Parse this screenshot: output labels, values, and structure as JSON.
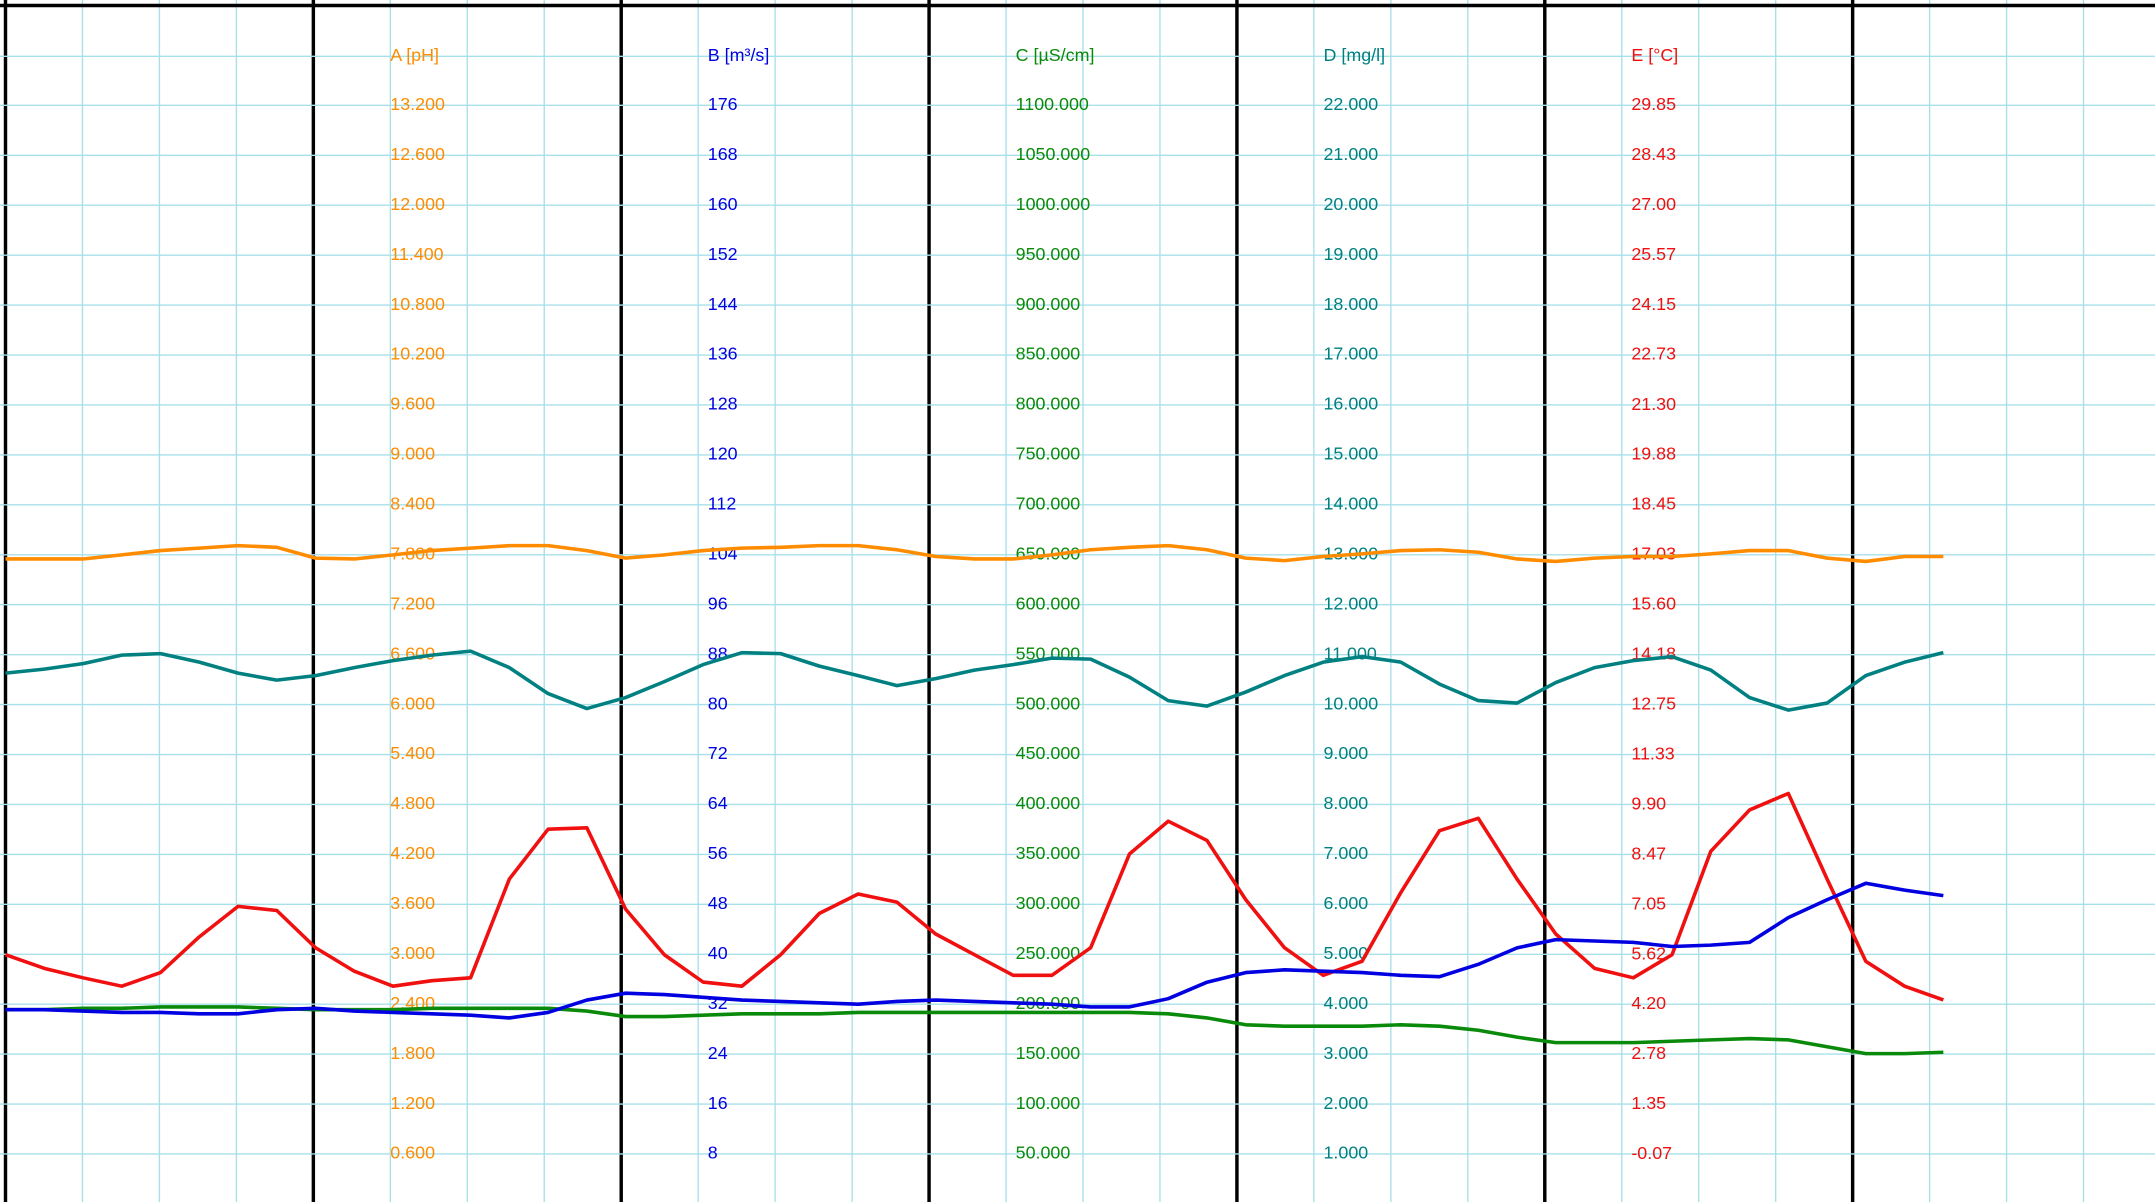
{
  "chart_data": {
    "type": "line",
    "grid": true,
    "categories": [
      null,
      null,
      null,
      null,
      null,
      null,
      null,
      null,
      null,
      null,
      null,
      null,
      null,
      null,
      null,
      null,
      null,
      null,
      null,
      null,
      null,
      null,
      null,
      null,
      null,
      null,
      null,
      null,
      null,
      null,
      null,
      null,
      null,
      null,
      null,
      null,
      null,
      null,
      null,
      null,
      null,
      null,
      null,
      null,
      null,
      null,
      null,
      null,
      null,
      null,
      null
    ],
    "series": [
      {
        "name": "A [pH]",
        "color": "#ff8c00",
        "ylim": [
          0,
          14.4
        ],
        "yticks": [
          {
            "value": 0.6,
            "label": "0.600"
          },
          {
            "value": 1.2,
            "label": "1.200"
          },
          {
            "value": 1.8,
            "label": "1.800"
          },
          {
            "value": 2.4,
            "label": "2.400"
          },
          {
            "value": 3.0,
            "label": "3.000"
          },
          {
            "value": 3.6,
            "label": "3.600"
          },
          {
            "value": 4.2,
            "label": "4.200"
          },
          {
            "value": 4.8,
            "label": "4.800"
          },
          {
            "value": 5.4,
            "label": "5.400"
          },
          {
            "value": 6.0,
            "label": "6.000"
          },
          {
            "value": 6.6,
            "label": "6.600"
          },
          {
            "value": 7.2,
            "label": "7.200"
          },
          {
            "value": 7.8,
            "label": "7.800"
          },
          {
            "value": 8.4,
            "label": "8.400"
          },
          {
            "value": 9.0,
            "label": "9.000"
          },
          {
            "value": 9.6,
            "label": "9.600"
          },
          {
            "value": 10.2,
            "label": "10.200"
          },
          {
            "value": 10.8,
            "label": "10.800"
          },
          {
            "value": 11.4,
            "label": "11.400"
          },
          {
            "value": 12.0,
            "label": "12.000"
          },
          {
            "value": 12.6,
            "label": "12.600"
          },
          {
            "value": 13.2,
            "label": "13.200"
          }
        ],
        "values": [
          7.75,
          7.75,
          7.75,
          7.8,
          7.85,
          7.88,
          7.91,
          7.89,
          7.76,
          7.75,
          7.8,
          7.85,
          7.88,
          7.91,
          7.91,
          7.85,
          7.76,
          7.8,
          7.85,
          7.88,
          7.89,
          7.91,
          7.91,
          7.86,
          7.78,
          7.75,
          7.75,
          7.8,
          7.86,
          7.89,
          7.91,
          7.86,
          7.76,
          7.73,
          7.78,
          7.81,
          7.85,
          7.86,
          7.83,
          7.75,
          7.72,
          7.76,
          7.78,
          7.78,
          7.81,
          7.85,
          7.85,
          7.76,
          7.72,
          7.78,
          7.78
        ]
      },
      {
        "name": "B [m³/s]",
        "color": "#0000e0",
        "ylim": [
          0,
          192
        ],
        "yticks": [
          8,
          16,
          24,
          32,
          40,
          48,
          56,
          64,
          72,
          80,
          88,
          96,
          104,
          112,
          120,
          128,
          136,
          144,
          152,
          160,
          168,
          176
        ],
        "values": [
          31.12,
          31.12,
          30.9,
          30.68,
          30.68,
          30.46,
          30.46,
          31.12,
          31.34,
          30.9,
          30.68,
          30.46,
          30.24,
          29.8,
          30.68,
          32.66,
          33.76,
          33.54,
          33.1,
          32.66,
          32.44,
          32.22,
          32.0,
          32.44,
          32.66,
          32.44,
          32.22,
          32.0,
          31.56,
          31.56,
          32.88,
          35.52,
          37.06,
          37.5,
          37.28,
          37.06,
          36.62,
          36.4,
          38.38,
          41.02,
          42.34,
          42.12,
          41.9,
          41.24,
          41.46,
          41.9,
          45.87,
          48.73,
          51.37,
          50.27,
          49.39
        ]
      },
      {
        "name": "C [µS/cm]",
        "color": "#0a8a0a",
        "ylim": [
          0,
          1200
        ],
        "yticks": [
          {
            "value": 50,
            "label": "50.000"
          },
          {
            "value": 100,
            "label": "100.000"
          },
          {
            "value": 150,
            "label": "150.000"
          },
          {
            "value": 200,
            "label": "200.000"
          },
          {
            "value": 250,
            "label": "250.000"
          },
          {
            "value": 300,
            "label": "300.000"
          },
          {
            "value": 350,
            "label": "350.000"
          },
          {
            "value": 400,
            "label": "400.000"
          },
          {
            "value": 450,
            "label": "450.000"
          },
          {
            "value": 500,
            "label": "500.000"
          },
          {
            "value": 550,
            "label": "550.000"
          },
          {
            "value": 600,
            "label": "600.000"
          },
          {
            "value": 650,
            "label": "650.000"
          },
          {
            "value": 700,
            "label": "700.000"
          },
          {
            "value": 750,
            "label": "750.000"
          },
          {
            "value": 800,
            "label": "800.000"
          },
          {
            "value": 850,
            "label": "850.000"
          },
          {
            "value": 900,
            "label": "900.000"
          },
          {
            "value": 950,
            "label": "950.000"
          },
          {
            "value": 1000,
            "label": "1000.000"
          },
          {
            "value": 1050,
            "label": "1050.000"
          },
          {
            "value": 1100,
            "label": "1100.000"
          }
        ],
        "values": [
          194.5,
          194.5,
          195.9,
          195.9,
          197.2,
          197.2,
          197.2,
          195.9,
          194.5,
          194.5,
          194.5,
          195.9,
          195.9,
          195.9,
          195.9,
          193.1,
          187.6,
          187.6,
          189.0,
          190.4,
          190.4,
          190.4,
          191.7,
          191.7,
          191.7,
          191.7,
          191.7,
          191.7,
          191.7,
          191.7,
          190.4,
          186.2,
          179.4,
          178.0,
          178.0,
          178.0,
          179.4,
          178.0,
          173.9,
          167.0,
          161.5,
          161.5,
          161.5,
          162.9,
          164.2,
          165.6,
          164.2,
          157.4,
          150.5,
          150.5,
          151.9
        ]
      },
      {
        "name": "D [mg/l]",
        "color": "#008080",
        "ylim": [
          0,
          24
        ],
        "yticks": [
          {
            "value": 1,
            "label": "1.000"
          },
          {
            "value": 2,
            "label": "2.000"
          },
          {
            "value": 3,
            "label": "3.000"
          },
          {
            "value": 4,
            "label": "4.000"
          },
          {
            "value": 5,
            "label": "5.000"
          },
          {
            "value": 6,
            "label": "6.000"
          },
          {
            "value": 7,
            "label": "7.000"
          },
          {
            "value": 8,
            "label": "8.000"
          },
          {
            "value": 9,
            "label": "9.000"
          },
          {
            "value": 10,
            "label": "10.000"
          },
          {
            "value": 11,
            "label": "11.000"
          },
          {
            "value": 12,
            "label": "12.000"
          },
          {
            "value": 13,
            "label": "13.000"
          },
          {
            "value": 14,
            "label": "14.000"
          },
          {
            "value": 15,
            "label": "15.000"
          },
          {
            "value": 16,
            "label": "16.000"
          },
          {
            "value": 17,
            "label": "17.000"
          },
          {
            "value": 18,
            "label": "18.000"
          },
          {
            "value": 19,
            "label": "19.000"
          },
          {
            "value": 20,
            "label": "20.000"
          },
          {
            "value": 21,
            "label": "21.000"
          },
          {
            "value": 22,
            "label": "22.000"
          }
        ],
        "values": [
          10.63,
          10.71,
          10.82,
          10.99,
          11.02,
          10.85,
          10.63,
          10.49,
          10.58,
          10.74,
          10.88,
          10.99,
          11.07,
          10.74,
          10.22,
          9.92,
          10.14,
          10.46,
          10.8,
          11.04,
          11.02,
          10.77,
          10.58,
          10.38,
          10.52,
          10.69,
          10.8,
          10.93,
          10.91,
          10.55,
          10.08,
          9.97,
          10.25,
          10.58,
          10.85,
          10.96,
          10.85,
          10.41,
          10.08,
          10.03,
          10.44,
          10.74,
          10.88,
          10.96,
          10.69,
          10.14,
          9.89,
          10.03,
          10.58,
          10.85,
          11.04
        ]
      },
      {
        "name": "E [°C]",
        "color": "#f01010",
        "ylim": [
          -1.49,
          32.7
        ],
        "yticks": [
          -0.07,
          1.35,
          2.78,
          {
            "value": 4.2,
            "label": "4.20"
          },
          5.62,
          7.05,
          8.47,
          {
            "value": 9.9,
            "label": "9.90"
          },
          11.33,
          12.75,
          14.18,
          {
            "value": 15.6,
            "label": "15.60"
          },
          17.03,
          18.45,
          19.88,
          {
            "value": 21.3,
            "label": "21.30"
          },
          22.73,
          24.15,
          25.57,
          {
            "value": 27,
            "label": "27.00"
          },
          28.43,
          29.85
        ],
        "values": [
          5.62,
          5.23,
          4.96,
          4.72,
          5.11,
          6.13,
          7.0,
          6.88,
          5.82,
          5.15,
          4.72,
          4.88,
          4.96,
          7.78,
          9.2,
          9.24,
          6.92,
          5.62,
          4.84,
          4.72,
          5.62,
          6.8,
          7.35,
          7.12,
          6.21,
          5.62,
          5.03,
          5.03,
          5.82,
          8.49,
          9.43,
          8.88,
          7.19,
          5.82,
          5.03,
          5.43,
          7.39,
          9.16,
          9.51,
          7.78,
          6.21,
          5.23,
          4.96,
          5.62,
          8.57,
          9.75,
          10.22,
          7.78,
          5.43,
          4.72,
          4.33
        ]
      }
    ]
  }
}
